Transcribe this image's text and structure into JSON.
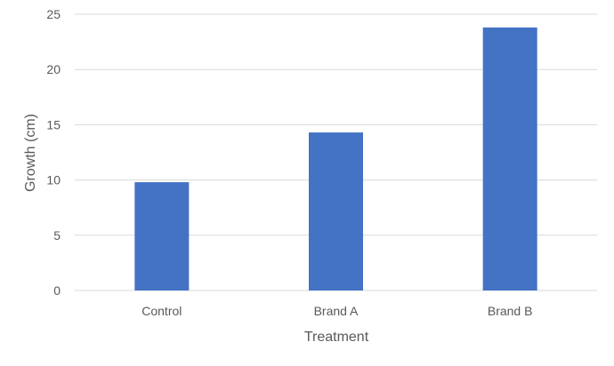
{
  "chart_data": {
    "type": "bar",
    "categories": [
      "Control",
      "Brand A",
      "Brand B"
    ],
    "values": [
      9.8,
      14.3,
      23.8
    ],
    "title": "",
    "xlabel": "Treatment",
    "ylabel": "Growth (cm)",
    "ylim": [
      0,
      25
    ],
    "yticks": [
      0,
      5,
      10,
      15,
      20,
      25
    ],
    "grid": true,
    "legend": "none",
    "bar_color": "#4472C4",
    "grid_color": "#D9D9D9",
    "text_color": "#595959"
  }
}
